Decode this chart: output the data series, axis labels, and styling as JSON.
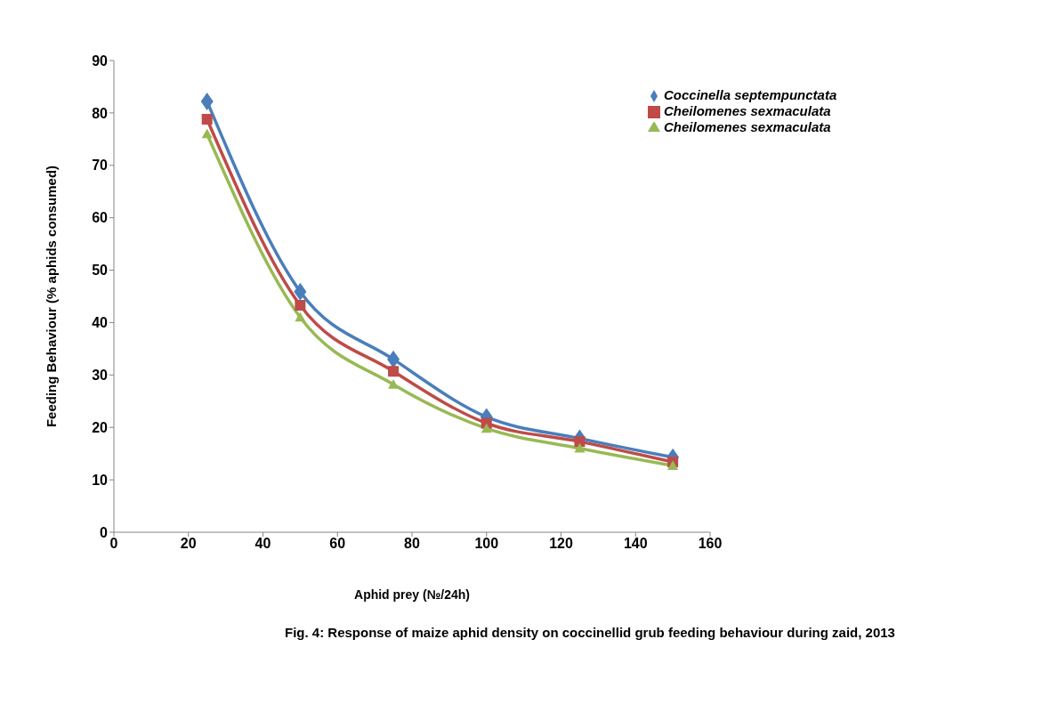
{
  "chart_data": {
    "type": "line",
    "xlabel": "Aphid prey (№/24h)",
    "ylabel": "Feeding Behaviour (% aphids consumed)",
    "x": [
      25,
      50,
      75,
      100,
      125,
      150
    ],
    "series": [
      {
        "name": "Coccinella septempunctata",
        "color": "#4a7ebb",
        "marker": "diamond",
        "values": [
          82.2,
          45.9,
          33.0,
          22.0,
          17.9,
          14.3
        ]
      },
      {
        "name": "Cheilomenes sexmaculata",
        "color": "#be4b48",
        "marker": "square",
        "values": [
          78.8,
          43.3,
          30.7,
          20.8,
          17.3,
          13.4
        ]
      },
      {
        "name": "Cheilomenes sexmaculata",
        "color": "#98b954",
        "marker": "triangle",
        "values": [
          76.0,
          41.0,
          28.2,
          19.8,
          16.0,
          12.7
        ]
      }
    ],
    "xlim": [
      0,
      160
    ],
    "xticks": [
      0,
      20,
      40,
      60,
      80,
      100,
      120,
      140,
      160
    ],
    "ylim": [
      0,
      90
    ],
    "yticks": [
      0,
      10,
      20,
      30,
      40,
      50,
      60,
      70,
      80,
      90
    ],
    "grid": false,
    "legend": "top right",
    "line_style": "solid",
    "annotations": [
      "Fig. 4: Response of maize aphid density on coccinellid grub feeding behaviour during  zaid, 2013"
    ]
  }
}
